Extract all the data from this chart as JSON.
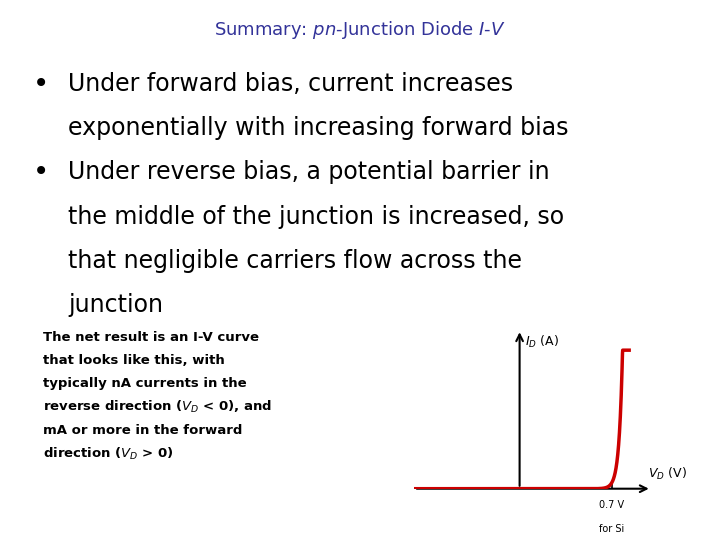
{
  "title_color": "#333399",
  "title_fontsize": 13,
  "bg_color": "#ffffff",
  "text_fontsize": 17,
  "text_color": "#000000",
  "note_fontsize": 9.5,
  "curve_color": "#cc0000",
  "diode_sat_current": 1e-09,
  "thermal_voltage": 0.026,
  "lines": [
    [
      true,
      "Under forward bias, current increases"
    ],
    [
      false,
      "exponentially with increasing forward bias"
    ],
    [
      true,
      "Under reverse bias, a potential barrier in"
    ],
    [
      false,
      "the middle of the junction is increased, so"
    ],
    [
      false,
      "that negligible carriers flow across the"
    ],
    [
      false,
      "junction"
    ]
  ],
  "note_lines": [
    "The net result is an I-V curve",
    "that looks like this, with",
    "typically nA currents in the",
    "reverse direction (V  < 0), and",
    "mA or more in the forward",
    "direction (V  > 0)"
  ]
}
